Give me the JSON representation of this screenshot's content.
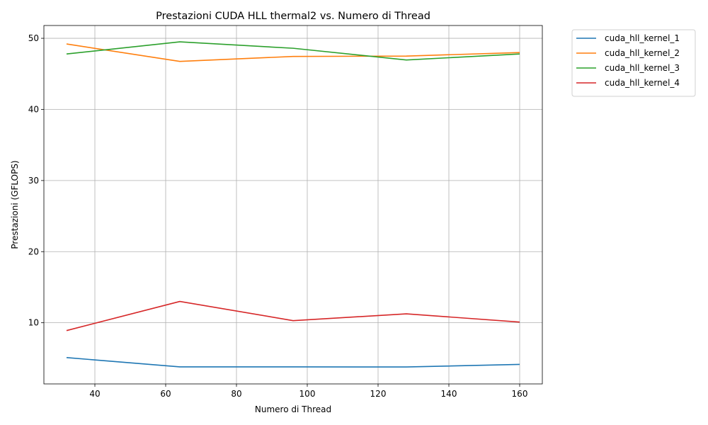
{
  "chart_data": {
    "type": "line",
    "title": "Prestazioni CUDA HLL thermal2 vs. Numero di Thread",
    "xlabel": "Numero di Thread",
    "ylabel": "Prestazioni (GFLOPS)",
    "x": [
      32,
      64,
      96,
      128,
      160
    ],
    "xlim": [
      25.6,
      166.4
    ],
    "ylim": [
      1.4,
      51.8
    ],
    "xticks": [
      40,
      60,
      80,
      100,
      120,
      140,
      160
    ],
    "yticks": [
      10,
      20,
      30,
      40,
      50
    ],
    "grid": true,
    "legend_position": "outside-top-right",
    "series": [
      {
        "name": "cuda_hll_kernel_1",
        "color": "#1f77b4",
        "values": [
          5.1,
          3.8,
          3.8,
          3.78,
          4.15
        ]
      },
      {
        "name": "cuda_hll_kernel_2",
        "color": "#ff7f0e",
        "values": [
          49.2,
          46.75,
          47.45,
          47.5,
          48.0
        ]
      },
      {
        "name": "cuda_hll_kernel_3",
        "color": "#2ca02c",
        "values": [
          47.8,
          49.5,
          48.6,
          46.95,
          47.8
        ]
      },
      {
        "name": "cuda_hll_kernel_4",
        "color": "#d62728",
        "values": [
          8.9,
          13.0,
          10.3,
          11.25,
          10.1
        ]
      }
    ]
  }
}
